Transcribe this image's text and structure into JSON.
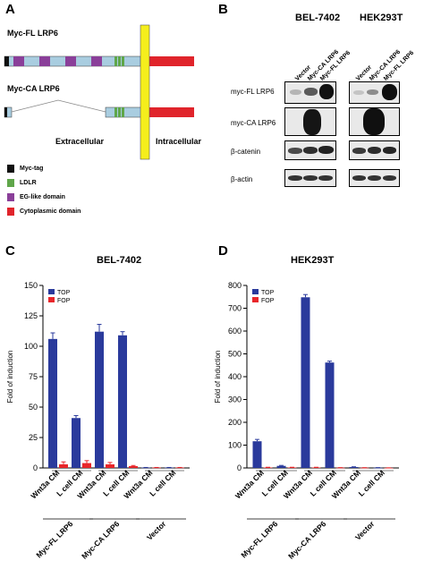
{
  "panels": {
    "a": {
      "letter": "A",
      "construct_fl": "Myc-FL LRP6",
      "construct_ca": "Myc-CA LRP6",
      "extracellular": "Extracellular",
      "intracellular": "Intracellular",
      "legend": [
        {
          "label": "Myc-tag",
          "color": "#111111"
        },
        {
          "label": "LDLR",
          "color": "#5fa64a"
        },
        {
          "label": "EG-like domain",
          "color": "#8a3f99"
        },
        {
          "label": "Cytoplasmic domain",
          "color": "#e0242b"
        }
      ],
      "colors": {
        "extracellular_fill": "#a9cde0",
        "membrane": "#f5ee1c"
      }
    },
    "b": {
      "letter": "B",
      "cell_lines": [
        "BEL-7402",
        "HEK293T"
      ],
      "lanes": [
        "Vector",
        "Myc-CA LRP6",
        "Myc-FL LRP6"
      ],
      "rows": [
        "myc-FL LRP6",
        "myc-CA LRP6",
        "β-catenin",
        "β-actin"
      ]
    },
    "c": {
      "letter": "C",
      "chart_data": {
        "type": "bar",
        "title": "BEL-7402",
        "ylabel": "Fold of induction",
        "ylim": [
          0,
          150
        ],
        "yticks": [
          0,
          25,
          50,
          75,
          100,
          125,
          150
        ],
        "categories": [
          "Wnt3a CM",
          "L cell CM",
          "Wnt3a CM",
          "L cell CM",
          "Wnt3a CM",
          "L cell CM"
        ],
        "groups": [
          {
            "label": "Myc-FL LRP6",
            "categories": [
              0,
              1
            ]
          },
          {
            "label": "Myc-CA LRP6",
            "categories": [
              2,
              3
            ]
          },
          {
            "label": "Vector",
            "categories": [
              4,
              5
            ]
          }
        ],
        "series": [
          {
            "name": "TOP",
            "color": "#2a3a9c",
            "values": [
              106,
              41,
              112,
              109,
              0.3,
              0.3
            ],
            "errors": [
              5,
              2,
              6,
              3,
              0.1,
              0.1
            ]
          },
          {
            "name": "FOP",
            "color": "#e8262a",
            "values": [
              3,
              4,
              3,
              1.5,
              0.3,
              0.3
            ],
            "errors": [
              2,
              2,
              1.5,
              0.5,
              0.1,
              0.1
            ]
          }
        ],
        "legend": "top-left"
      }
    },
    "d": {
      "letter": "D",
      "chart_data": {
        "type": "bar",
        "title": "HEK293T",
        "ylabel": "Fold of induction",
        "ylim": [
          0,
          800
        ],
        "yticks": [
          0,
          100,
          200,
          300,
          400,
          500,
          600,
          700,
          800
        ],
        "categories": [
          "Wnt3a CM",
          "L cell CM",
          "Wnt3a CM",
          "L cell CM",
          "Wnt3a CM",
          "L cell CM"
        ],
        "groups": [
          {
            "label": "Myc-FL LRP6",
            "categories": [
              0,
              1
            ]
          },
          {
            "label": "Myc-CA LRP6",
            "categories": [
              2,
              3
            ]
          },
          {
            "label": "Vector",
            "categories": [
              4,
              5
            ]
          }
        ],
        "series": [
          {
            "name": "TOP",
            "color": "#2a3a9c",
            "values": [
              117,
              9,
              748,
              462,
              4,
              1
            ],
            "errors": [
              8,
              2,
              12,
              6,
              1,
              0.5
            ]
          },
          {
            "name": "FOP",
            "color": "#e8262a",
            "values": [
              2,
              2,
              2,
              1,
              1,
              0.5
            ],
            "errors": [
              1,
              1,
              1,
              0.5,
              0.3,
              0.2
            ]
          }
        ],
        "legend": "top-left"
      }
    }
  }
}
